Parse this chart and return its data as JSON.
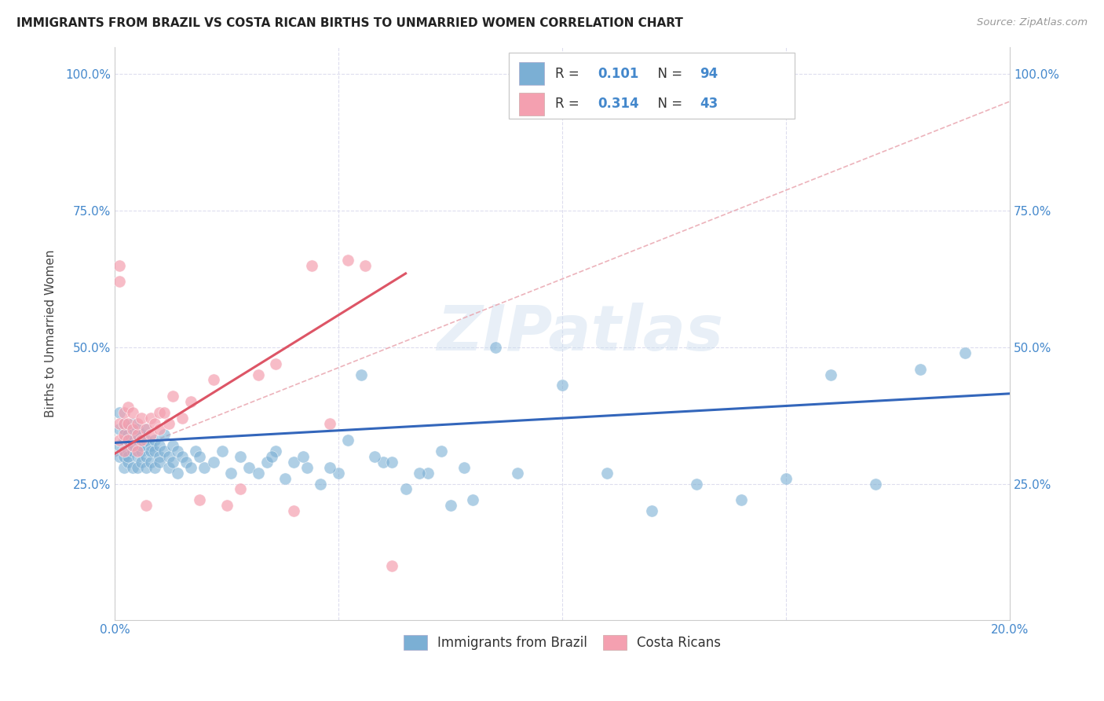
{
  "title": "IMMIGRANTS FROM BRAZIL VS COSTA RICAN BIRTHS TO UNMARRIED WOMEN CORRELATION CHART",
  "source": "Source: ZipAtlas.com",
  "ylabel": "Births to Unmarried Women",
  "xlim": [
    0.0,
    0.2
  ],
  "ylim": [
    0.0,
    1.05
  ],
  "ytick_values": [
    0.0,
    0.25,
    0.5,
    0.75,
    1.0
  ],
  "ytick_labels": [
    "",
    "25.0%",
    "50.0%",
    "75.0%",
    "100.0%"
  ],
  "xtick_values": [
    0.0,
    0.2
  ],
  "xtick_labels": [
    "0.0%",
    "20.0%"
  ],
  "xgrid_values": [
    0.0,
    0.05,
    0.1,
    0.15,
    0.2
  ],
  "legend_r1_val": "0.101",
  "legend_n1_val": "94",
  "legend_r2_val": "0.314",
  "legend_n2_val": "43",
  "color_blue": "#7BAFD4",
  "color_pink": "#F4A0B0",
  "color_line_blue": "#3366BB",
  "color_line_pink": "#DD5566",
  "color_dash": "#E8A0AA",
  "color_grid": "#DDDDEE",
  "color_text_blue": "#4488CC",
  "watermark": "ZIPatlas",
  "legend_label1": "Immigrants from Brazil",
  "legend_label2": "Costa Ricans",
  "blue_x": [
    0.001,
    0.001,
    0.001,
    0.001,
    0.002,
    0.002,
    0.002,
    0.002,
    0.002,
    0.003,
    0.003,
    0.003,
    0.003,
    0.003,
    0.004,
    0.004,
    0.004,
    0.004,
    0.004,
    0.005,
    0.005,
    0.005,
    0.005,
    0.006,
    0.006,
    0.006,
    0.006,
    0.007,
    0.007,
    0.007,
    0.007,
    0.008,
    0.008,
    0.008,
    0.009,
    0.009,
    0.009,
    0.01,
    0.01,
    0.01,
    0.011,
    0.011,
    0.012,
    0.012,
    0.013,
    0.013,
    0.014,
    0.014,
    0.015,
    0.016,
    0.017,
    0.018,
    0.019,
    0.02,
    0.022,
    0.024,
    0.026,
    0.028,
    0.03,
    0.032,
    0.034,
    0.036,
    0.038,
    0.04,
    0.043,
    0.046,
    0.05,
    0.055,
    0.06,
    0.065,
    0.07,
    0.075,
    0.08,
    0.09,
    0.1,
    0.11,
    0.12,
    0.13,
    0.14,
    0.15,
    0.16,
    0.17,
    0.18,
    0.19,
    0.035,
    0.042,
    0.048,
    0.052,
    0.058,
    0.062,
    0.068,
    0.073,
    0.078,
    0.085
  ],
  "blue_y": [
    0.35,
    0.38,
    0.32,
    0.3,
    0.36,
    0.33,
    0.3,
    0.28,
    0.35,
    0.34,
    0.31,
    0.29,
    0.33,
    0.3,
    0.34,
    0.31,
    0.28,
    0.36,
    0.32,
    0.35,
    0.3,
    0.28,
    0.33,
    0.34,
    0.31,
    0.29,
    0.32,
    0.33,
    0.3,
    0.28,
    0.35,
    0.32,
    0.29,
    0.31,
    0.31,
    0.28,
    0.33,
    0.3,
    0.32,
    0.29,
    0.31,
    0.34,
    0.3,
    0.28,
    0.32,
    0.29,
    0.31,
    0.27,
    0.3,
    0.29,
    0.28,
    0.31,
    0.3,
    0.28,
    0.29,
    0.31,
    0.27,
    0.3,
    0.28,
    0.27,
    0.29,
    0.31,
    0.26,
    0.29,
    0.28,
    0.25,
    0.27,
    0.45,
    0.29,
    0.24,
    0.27,
    0.21,
    0.22,
    0.27,
    0.43,
    0.27,
    0.2,
    0.25,
    0.22,
    0.26,
    0.45,
    0.25,
    0.46,
    0.49,
    0.3,
    0.3,
    0.28,
    0.33,
    0.3,
    0.29,
    0.27,
    0.31,
    0.28,
    0.5
  ],
  "pink_x": [
    0.001,
    0.001,
    0.001,
    0.001,
    0.002,
    0.002,
    0.002,
    0.002,
    0.003,
    0.003,
    0.003,
    0.004,
    0.004,
    0.004,
    0.005,
    0.005,
    0.005,
    0.006,
    0.006,
    0.007,
    0.007,
    0.008,
    0.008,
    0.009,
    0.01,
    0.01,
    0.011,
    0.012,
    0.013,
    0.015,
    0.017,
    0.019,
    0.022,
    0.025,
    0.028,
    0.032,
    0.036,
    0.04,
    0.044,
    0.048,
    0.052,
    0.056,
    0.062
  ],
  "pink_y": [
    0.62,
    0.65,
    0.33,
    0.36,
    0.34,
    0.31,
    0.36,
    0.38,
    0.33,
    0.36,
    0.39,
    0.32,
    0.35,
    0.38,
    0.34,
    0.31,
    0.36,
    0.33,
    0.37,
    0.35,
    0.21,
    0.34,
    0.37,
    0.36,
    0.38,
    0.35,
    0.38,
    0.36,
    0.41,
    0.37,
    0.4,
    0.22,
    0.44,
    0.21,
    0.24,
    0.45,
    0.47,
    0.2,
    0.65,
    0.36,
    0.66,
    0.65,
    0.1
  ],
  "blue_trend": [
    0.0,
    0.2,
    0.325,
    0.415
  ],
  "pink_trend": [
    0.0,
    0.065,
    0.305,
    0.635
  ],
  "dash_trend": [
    0.0,
    0.2,
    0.3,
    0.95
  ]
}
